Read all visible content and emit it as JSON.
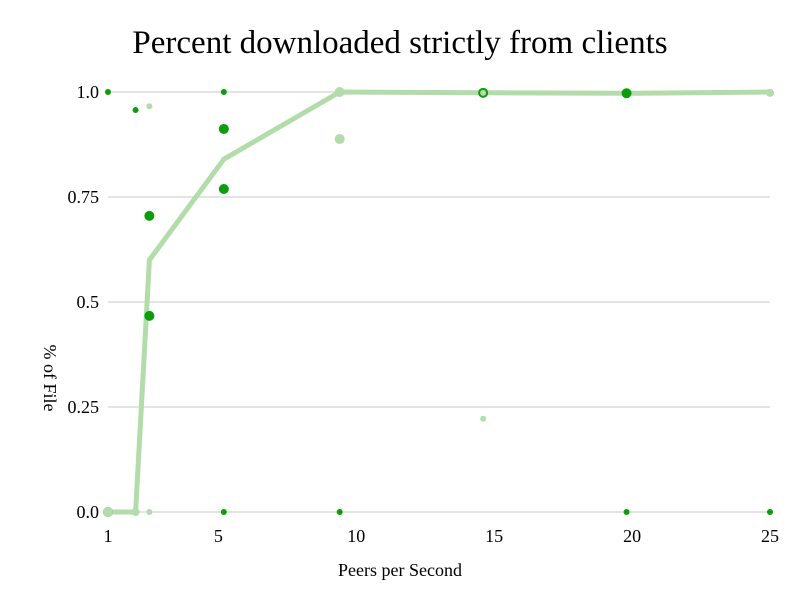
{
  "chart_data": {
    "type": "scatter",
    "title": "Percent downloaded strictly from clients",
    "xlabel": "Peers per Second",
    "ylabel": "% of File",
    "xlim": [
      1,
      25
    ],
    "ylim": [
      0,
      1
    ],
    "x_ticks": [
      1,
      5,
      10,
      15,
      20,
      25
    ],
    "y_ticks": [
      0,
      0.25,
      0.5,
      0.75,
      1
    ],
    "y_tick_labels": [
      "0.0",
      "0.25",
      "0.5",
      "0.75",
      "1.0"
    ],
    "grid": "horizontal",
    "legend": "none",
    "colors": {
      "trend_line": "#b2dcaa",
      "dark_points": "#0b9d0b",
      "light_points": "#b2dcaa"
    },
    "series": [
      {
        "kind": "line",
        "x": [
          1,
          2,
          2.5,
          5.2,
          9.4,
          14.6,
          19.8,
          25
        ],
        "y": [
          0,
          0,
          0.6,
          0.84,
          1.0,
          0.998,
          0.997,
          1.0
        ]
      },
      {
        "kind": "points",
        "tone": "dark",
        "points": [
          {
            "x": 1,
            "y": 1.0,
            "size": 3
          },
          {
            "x": 1,
            "y": 0,
            "size": 5
          },
          {
            "x": 2,
            "y": 0.957,
            "size": 3
          },
          {
            "x": 2.5,
            "y": 0.705,
            "size": 5
          },
          {
            "x": 2.5,
            "y": 0.467,
            "size": 5
          },
          {
            "x": 5.2,
            "y": 1.0,
            "size": 3
          },
          {
            "x": 5.2,
            "y": 0.912,
            "size": 5
          },
          {
            "x": 5.2,
            "y": 0.769,
            "size": 5
          },
          {
            "x": 5.2,
            "y": 0,
            "size": 3
          },
          {
            "x": 9.4,
            "y": 1.0,
            "size": 3
          },
          {
            "x": 9.4,
            "y": 0,
            "size": 3
          },
          {
            "x": 14.6,
            "y": 0.998,
            "size": 5
          },
          {
            "x": 19.8,
            "y": 0.997,
            "size": 5
          },
          {
            "x": 19.8,
            "y": 0,
            "size": 3
          },
          {
            "x": 25,
            "y": 1.0,
            "size": 3
          },
          {
            "x": 25,
            "y": 0,
            "size": 3
          }
        ]
      },
      {
        "kind": "points",
        "tone": "light",
        "points": [
          {
            "x": 1,
            "y": 0,
            "size": 5
          },
          {
            "x": 2,
            "y": 0,
            "size": 4
          },
          {
            "x": 2.5,
            "y": 0.966,
            "size": 3
          },
          {
            "x": 2.5,
            "y": 0,
            "size": 3
          },
          {
            "x": 9.4,
            "y": 1.0,
            "size": 5
          },
          {
            "x": 9.4,
            "y": 0.888,
            "size": 5
          },
          {
            "x": 14.6,
            "y": 0.222,
            "size": 3
          },
          {
            "x": 14.6,
            "y": 0.998,
            "size": 3
          },
          {
            "x": 25,
            "y": 0.998,
            "size": 4
          }
        ]
      }
    ]
  }
}
